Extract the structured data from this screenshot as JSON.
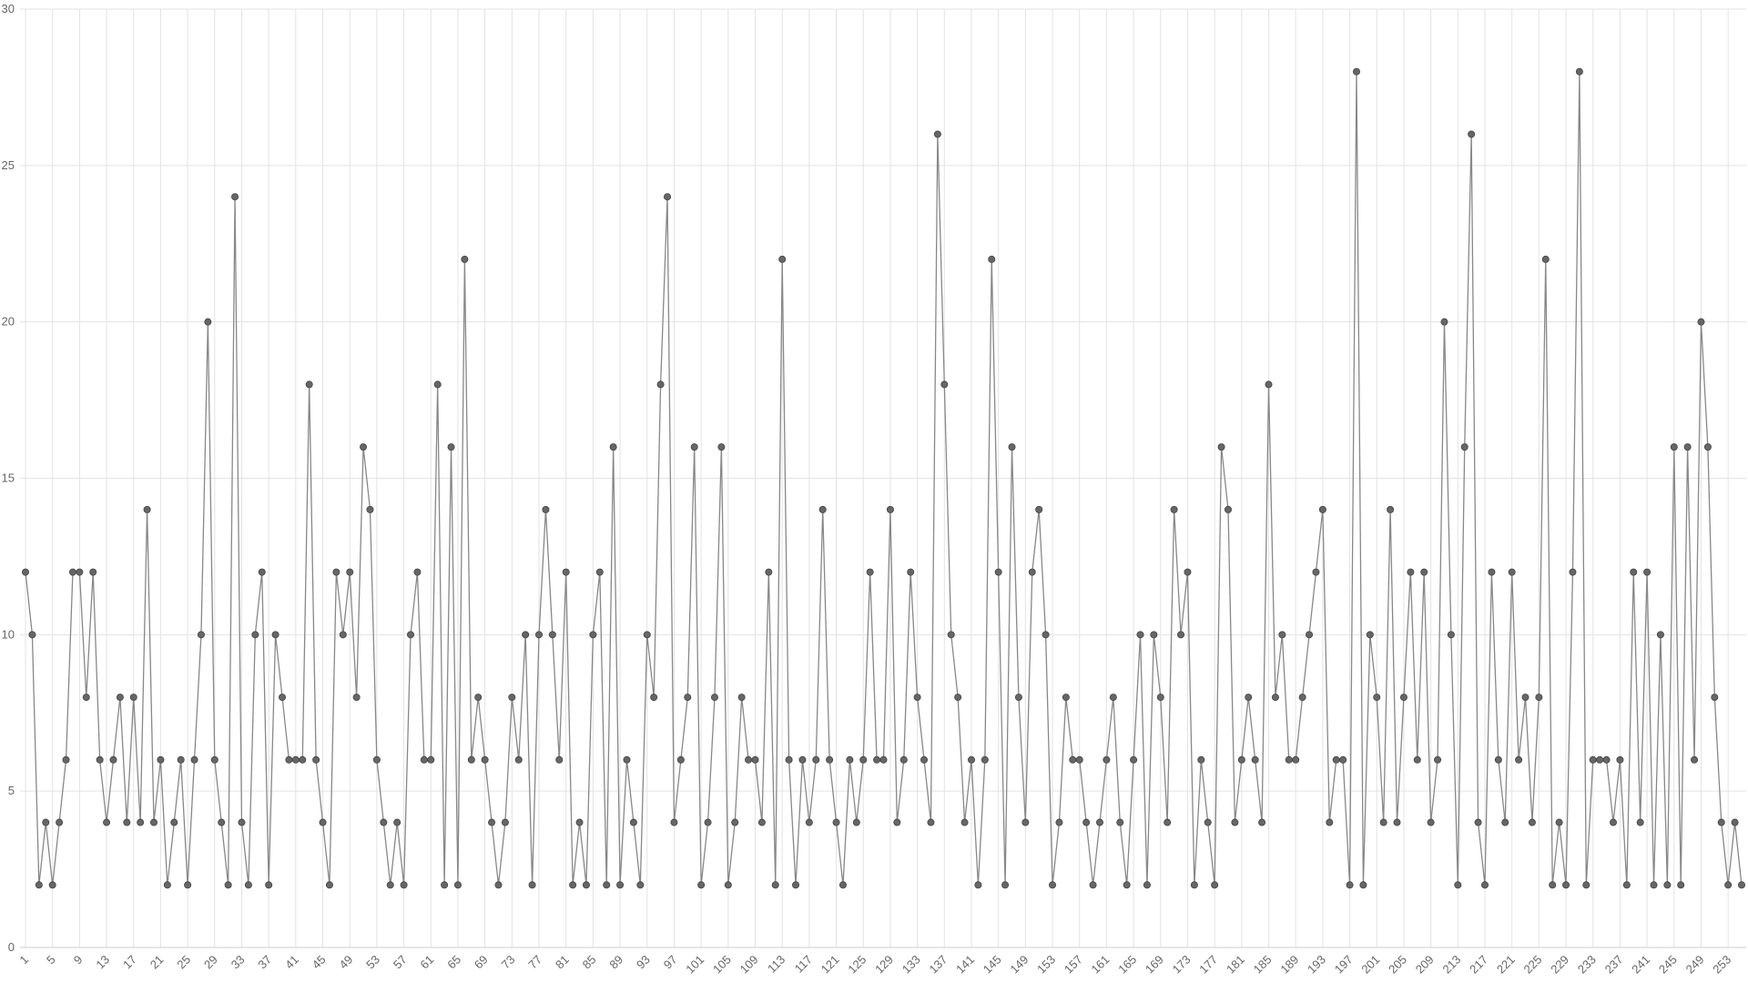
{
  "chart_data": {
    "type": "line",
    "color": "#666666",
    "grid": true,
    "ylim": [
      0,
      30
    ],
    "yticks": [
      0,
      5,
      10,
      15,
      20,
      25,
      30
    ],
    "categories": [
      1,
      null,
      null,
      null,
      5,
      null,
      null,
      null,
      9,
      null,
      null,
      null,
      13,
      null,
      null,
      null,
      17,
      null,
      null,
      null,
      21,
      null,
      null,
      null,
      25,
      null,
      null,
      null,
      29,
      null,
      null,
      null,
      33,
      null,
      null,
      null,
      37,
      null,
      null,
      null,
      41,
      null,
      null,
      null,
      45,
      null,
      null,
      null,
      49,
      null,
      null,
      null,
      53,
      null,
      null,
      null,
      57,
      null,
      null,
      null,
      61,
      null,
      null,
      null,
      65,
      null,
      null,
      null,
      69,
      null,
      null,
      null,
      73,
      null,
      null,
      null,
      77,
      null,
      null,
      null,
      81,
      null,
      null,
      null,
      85,
      null,
      null,
      null,
      89,
      null,
      null,
      null,
      93,
      null,
      null,
      null,
      97,
      null,
      null,
      null,
      101,
      null,
      null,
      null,
      105,
      null,
      null,
      null,
      109,
      null,
      null,
      null,
      113,
      null,
      null,
      null,
      117,
      null,
      null,
      null,
      121,
      null,
      null,
      null,
      125,
      null,
      null,
      null,
      129,
      null,
      null,
      null,
      133,
      null,
      null,
      null,
      137,
      null,
      null,
      null,
      141,
      null,
      null,
      null,
      145,
      null,
      null,
      null,
      149,
      null,
      null,
      null,
      153,
      null,
      null,
      null,
      157,
      null,
      null,
      null,
      161,
      null,
      null,
      null,
      165,
      null,
      null,
      null,
      169,
      null,
      null,
      null,
      173,
      null,
      null,
      null,
      177,
      null,
      null,
      null,
      181,
      null,
      null,
      null,
      185,
      null,
      null,
      null,
      189,
      null,
      null,
      null,
      193,
      null,
      null,
      null,
      197,
      null,
      null,
      null,
      201,
      null,
      null,
      null,
      205,
      null,
      null,
      null,
      209,
      null,
      null,
      null,
      213,
      null,
      null,
      null,
      217,
      null,
      null,
      null,
      221,
      null,
      null,
      null,
      225,
      null,
      null,
      null,
      229,
      null,
      null,
      null,
      233,
      null,
      null,
      null,
      237,
      null,
      null,
      null,
      241,
      null,
      null,
      null,
      245,
      null,
      null,
      null,
      249,
      null,
      null,
      null,
      253,
      null,
      null
    ],
    "values": [
      12,
      10,
      2,
      4,
      2,
      4,
      6,
      12,
      12,
      8,
      12,
      6,
      4,
      6,
      8,
      4,
      8,
      4,
      14,
      4,
      6,
      2,
      4,
      6,
      2,
      6,
      10,
      20,
      6,
      4,
      2,
      24,
      4,
      2,
      10,
      12,
      2,
      10,
      8,
      6,
      6,
      6,
      18,
      6,
      4,
      2,
      12,
      10,
      12,
      8,
      16,
      14,
      6,
      4,
      2,
      4,
      2,
      10,
      12,
      6,
      6,
      18,
      2,
      16,
      2,
      22,
      6,
      8,
      6,
      4,
      2,
      4,
      8,
      6,
      10,
      2,
      10,
      14,
      10,
      6,
      12,
      2,
      4,
      2,
      10,
      12,
      2,
      16,
      2,
      6,
      4,
      2,
      10,
      8,
      18,
      24,
      4,
      6,
      8,
      16,
      2,
      4,
      8,
      16,
      2,
      4,
      8,
      6,
      6,
      4,
      12,
      2,
      22,
      6,
      2,
      6,
      4,
      6,
      14,
      6,
      4,
      2,
      6,
      4,
      6,
      12,
      6,
      6,
      14,
      4,
      6,
      12,
      8,
      6,
      4,
      26,
      18,
      10,
      8,
      4,
      6,
      2,
      6,
      22,
      12,
      2,
      16,
      8,
      4,
      12,
      14,
      10,
      2,
      4,
      8,
      6,
      6,
      4,
      2,
      4,
      6,
      8,
      4,
      2,
      6,
      10,
      2,
      10,
      8,
      4,
      14,
      10,
      12,
      2,
      6,
      4,
      2,
      16,
      14,
      4,
      6,
      8,
      6,
      4,
      18,
      8,
      10,
      6,
      6,
      8,
      10,
      12,
      14,
      4,
      6,
      6,
      2,
      28,
      2,
      10,
      8,
      4,
      14,
      4,
      8,
      12,
      6,
      12,
      4,
      6,
      20,
      10,
      2,
      16,
      26,
      4,
      2,
      12,
      6,
      4,
      12,
      6,
      8,
      4,
      8,
      22,
      2,
      4,
      2,
      12,
      28,
      2,
      6,
      6,
      6,
      4,
      6,
      2,
      12,
      4,
      12,
      2,
      10,
      2,
      16,
      2,
      16,
      6,
      20,
      16,
      8,
      4,
      2,
      4,
      2
    ]
  }
}
